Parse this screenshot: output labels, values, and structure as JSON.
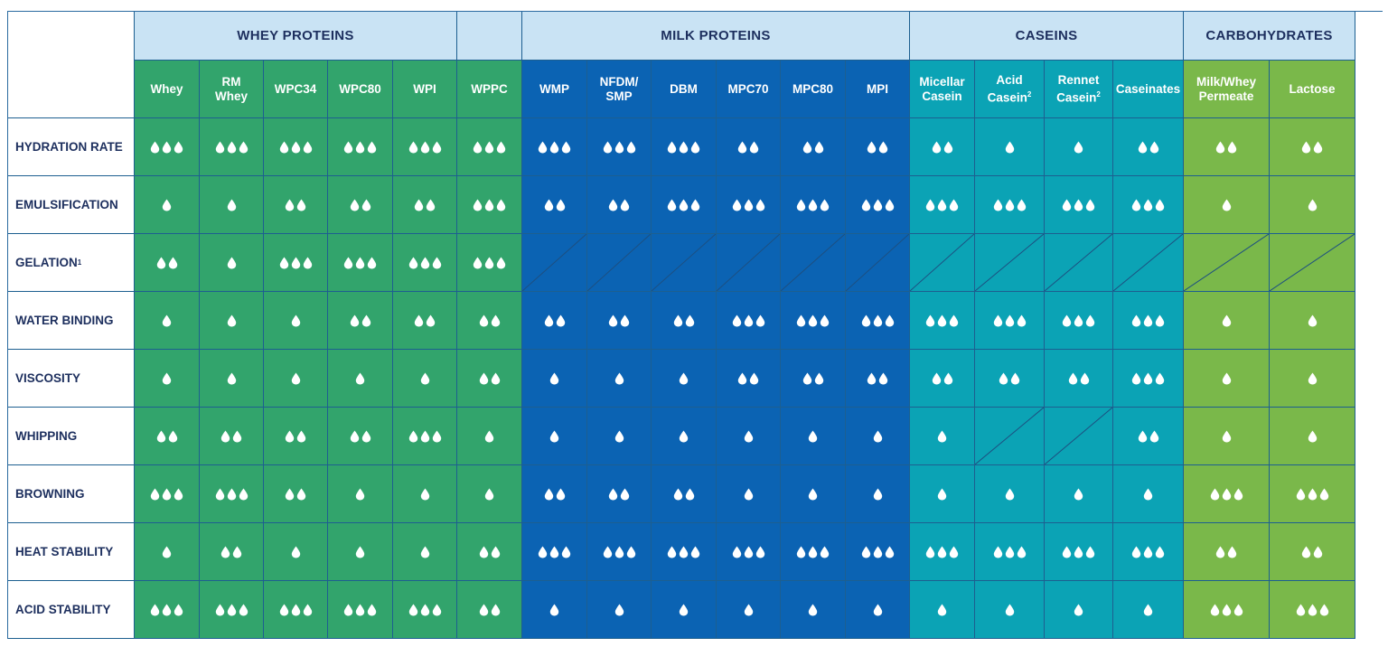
{
  "groups": [
    {
      "label": "WHEY PROTEINS",
      "span": 5,
      "color": "#32a46c"
    },
    {
      "label": "",
      "span": 1,
      "color": "#32a46c"
    },
    {
      "label": "MILK PROTEINS",
      "span": 6,
      "color": "#0b63b3"
    },
    {
      "label": "CASEINS",
      "span": 4,
      "color": "#0ba3b5"
    },
    {
      "label": "CARBOHYDRATES",
      "span": 2,
      "color": "#7ab84a"
    }
  ],
  "columns": [
    {
      "label": "Whey",
      "group": 0
    },
    {
      "label": "RM\nWhey",
      "group": 0
    },
    {
      "label": "WPC34",
      "group": 0
    },
    {
      "label": "WPC80",
      "group": 0
    },
    {
      "label": "WPI",
      "group": 0
    },
    {
      "label": "WPPC",
      "group": 1
    },
    {
      "label": "WMP",
      "group": 2
    },
    {
      "label": "NFDM/\nSMP",
      "group": 2
    },
    {
      "label": "DBM",
      "group": 2
    },
    {
      "label": "MPC70",
      "group": 2
    },
    {
      "label": "MPC80",
      "group": 2
    },
    {
      "label": "MPI",
      "group": 2
    },
    {
      "label": "Micellar\nCasein",
      "group": 3
    },
    {
      "label": "Acid\nCasein",
      "sup": "2",
      "group": 3
    },
    {
      "label": "Rennet\nCasein",
      "sup": "2",
      "group": 3
    },
    {
      "label": "Caseinates",
      "group": 3
    },
    {
      "label": "Milk/Whey\nPermeate",
      "group": 4
    },
    {
      "label": "Lactose",
      "group": 4
    }
  ],
  "rows": [
    {
      "label": "HYDRATION RATE",
      "values": [
        3,
        3,
        3,
        3,
        3,
        3,
        3,
        3,
        3,
        2,
        2,
        2,
        2,
        1,
        1,
        2,
        2,
        2
      ]
    },
    {
      "label": "EMULSIFICATION",
      "values": [
        1,
        1,
        2,
        2,
        2,
        3,
        2,
        2,
        3,
        3,
        3,
        3,
        3,
        3,
        3,
        3,
        1,
        1
      ]
    },
    {
      "label": "GELATION",
      "sup": "1",
      "values": [
        2,
        1,
        3,
        3,
        3,
        3,
        0,
        0,
        0,
        0,
        0,
        0,
        0,
        0,
        0,
        0,
        0,
        0
      ]
    },
    {
      "label": "WATER BINDING",
      "values": [
        1,
        1,
        1,
        2,
        2,
        2,
        2,
        2,
        2,
        3,
        3,
        3,
        3,
        3,
        3,
        3,
        1,
        1
      ]
    },
    {
      "label": "VISCOSITY",
      "values": [
        1,
        1,
        1,
        1,
        1,
        2,
        1,
        1,
        1,
        2,
        2,
        2,
        2,
        2,
        2,
        3,
        1,
        1
      ]
    },
    {
      "label": "WHIPPING",
      "values": [
        2,
        2,
        2,
        2,
        3,
        1,
        1,
        1,
        1,
        1,
        1,
        1,
        1,
        0,
        0,
        2,
        1,
        1
      ]
    },
    {
      "label": "BROWNING",
      "values": [
        3,
        3,
        2,
        1,
        1,
        1,
        2,
        2,
        2,
        1,
        1,
        1,
        1,
        1,
        1,
        1,
        3,
        3
      ]
    },
    {
      "label": "HEAT STABILITY",
      "values": [
        1,
        2,
        1,
        1,
        1,
        2,
        3,
        3,
        3,
        3,
        3,
        3,
        3,
        3,
        3,
        3,
        2,
        2
      ]
    },
    {
      "label": "ACID STABILITY",
      "values": [
        3,
        3,
        3,
        3,
        3,
        2,
        1,
        1,
        1,
        1,
        1,
        1,
        1,
        1,
        1,
        1,
        3,
        3
      ]
    }
  ]
}
